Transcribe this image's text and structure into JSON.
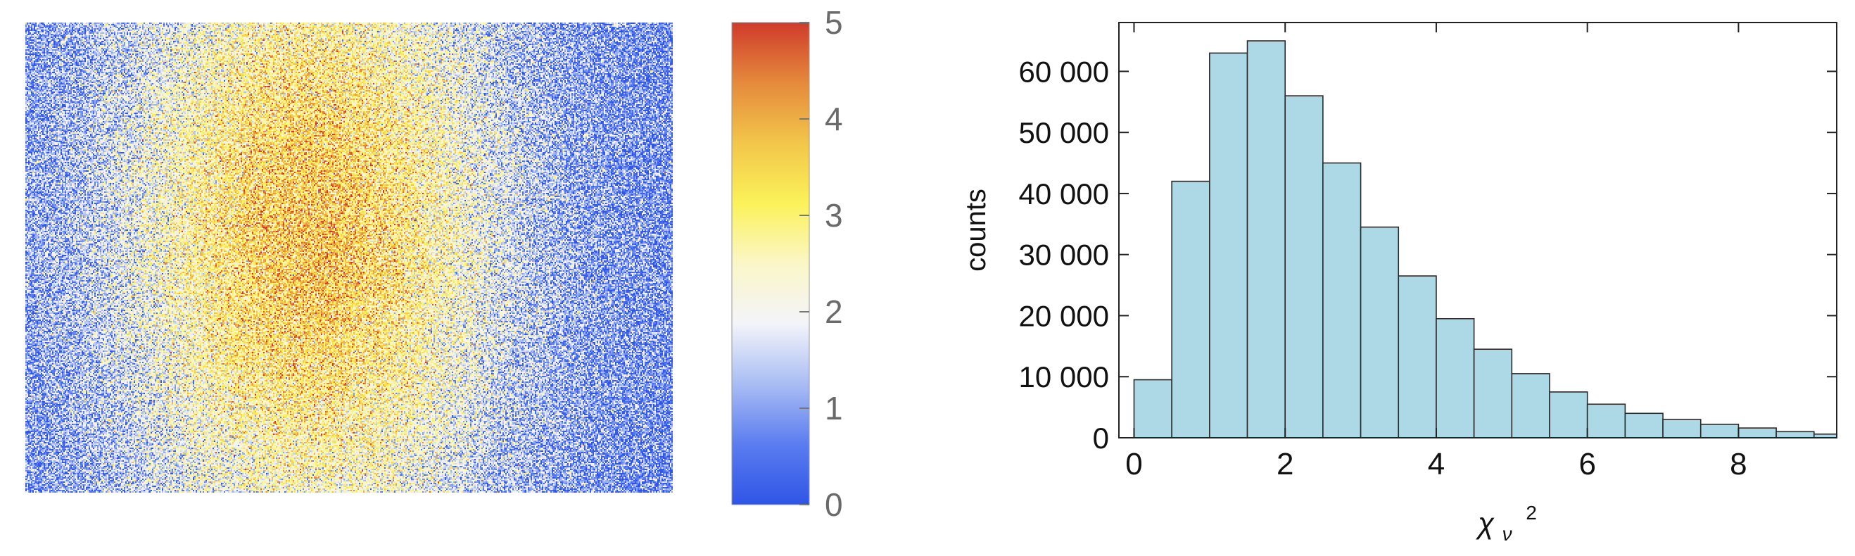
{
  "chart_data": [
    {
      "type": "heatmap",
      "title": "",
      "xlabel": "",
      "ylabel": "",
      "colorbar": {
        "range": [
          0,
          5
        ],
        "ticks": [
          "0",
          "1",
          "2",
          "3",
          "4",
          "5"
        ],
        "colormap": [
          "#2f55e6",
          "#5b7cf0",
          "#a9bdf4",
          "#f3f4fa",
          "#fbf6c8",
          "#fbf25a",
          "#f2c64a",
          "#e58a3c",
          "#cf3b2b"
        ]
      },
      "value_pattern": "high values (~3–4) concentrated in the central-left region, low values (~0–1) toward the left and right edges, with strong pixel noise"
    },
    {
      "type": "bar",
      "histogram": true,
      "title": "",
      "xlabel": "χν²",
      "xlabel_main": "χ",
      "xlabel_sub": "ν",
      "xlabel_sup": "2",
      "ylabel": "counts",
      "bin_width": 0.5,
      "bins_start": [
        0,
        0.5,
        1.0,
        1.5,
        2.0,
        2.5,
        3.0,
        3.5,
        4.0,
        4.5,
        5.0,
        5.5,
        6.0,
        6.5,
        7.0,
        7.5,
        8.0,
        8.5,
        9.0
      ],
      "values": [
        9500,
        42000,
        63000,
        65000,
        56000,
        45000,
        34500,
        26500,
        19500,
        14500,
        10500,
        7500,
        5500,
        4000,
        3000,
        2200,
        1600,
        1000,
        600
      ],
      "xlim": [
        -0.2,
        9.3
      ],
      "ylim": [
        0,
        68000
      ],
      "xticks": [
        0,
        2,
        4,
        6,
        8
      ],
      "xtick_labels": [
        "0",
        "2",
        "4",
        "6",
        "8"
      ],
      "yticks": [
        0,
        10000,
        20000,
        30000,
        40000,
        50000,
        60000
      ],
      "ytick_labels": [
        "0",
        "10 000",
        "20 000",
        "30 000",
        "40 000",
        "50 000",
        "60 000"
      ],
      "bar_color": "#add8e6",
      "edge_color": "#2a2a2a",
      "grid": false
    }
  ]
}
